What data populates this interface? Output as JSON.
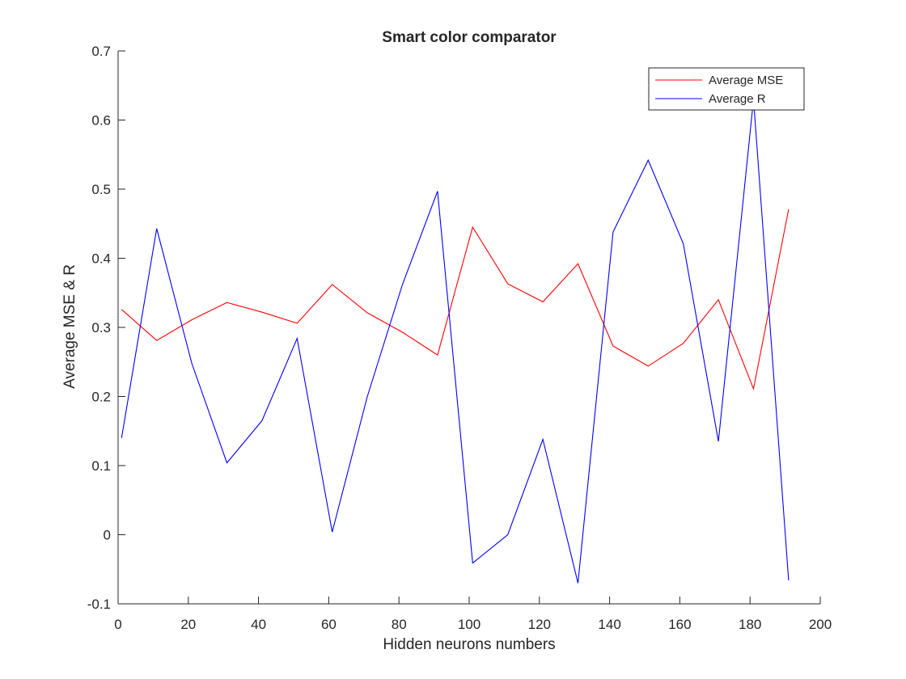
{
  "chart_data": {
    "type": "line",
    "title": "Smart color comparator",
    "xlabel": "Hidden neurons numbers",
    "ylabel": "Average MSE & R",
    "xlim": [
      0,
      200
    ],
    "ylim": [
      -0.1,
      0.7
    ],
    "xticks": [
      "0",
      "20",
      "40",
      "60",
      "80",
      "100",
      "120",
      "140",
      "160",
      "180",
      "200"
    ],
    "yticks": [
      "-0.1",
      "0",
      "0.1",
      "0.2",
      "0.3",
      "0.4",
      "0.5",
      "0.6",
      "0.7"
    ],
    "grid": false,
    "legend_position": "top-right",
    "x": [
      1,
      11,
      21,
      31,
      41,
      51,
      61,
      71,
      81,
      91,
      101,
      111,
      121,
      131,
      141,
      151,
      161,
      171,
      181,
      191
    ],
    "series": [
      {
        "name": "Average MSE",
        "color": "#ff0000",
        "values": [
          0.326,
          0.281,
          0.311,
          0.336,
          0.322,
          0.306,
          0.362,
          0.321,
          0.293,
          0.26,
          0.445,
          0.363,
          0.337,
          0.392,
          0.273,
          0.244,
          0.277,
          0.34,
          0.211,
          0.471
        ]
      },
      {
        "name": "Average R",
        "color": "#0000ff",
        "values": [
          0.14,
          0.443,
          0.248,
          0.104,
          0.165,
          0.284,
          0.004,
          0.2,
          0.362,
          0.497,
          -0.041,
          0.0,
          0.138,
          -0.07,
          0.438,
          0.542,
          0.421,
          0.135,
          0.63,
          -0.066
        ]
      }
    ]
  }
}
